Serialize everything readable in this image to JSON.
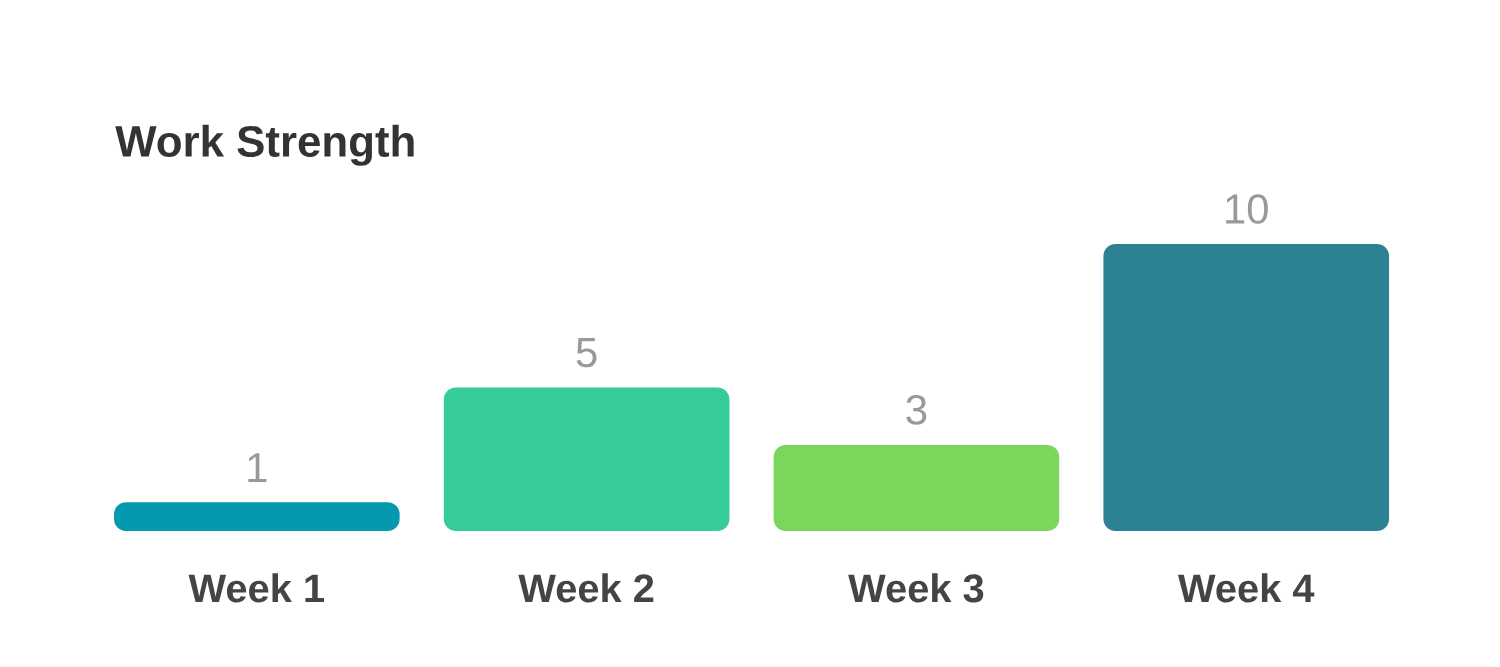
{
  "chart_data": {
    "type": "bar",
    "title": "Work Strength",
    "categories": [
      "Week 1",
      "Week 2",
      "Week 3",
      "Week 4"
    ],
    "values": [
      1,
      5,
      3,
      10
    ],
    "colors": [
      "#0599b0",
      "#35cc97",
      "#7bd75b",
      "#2c8293"
    ],
    "data_labels": true
  }
}
